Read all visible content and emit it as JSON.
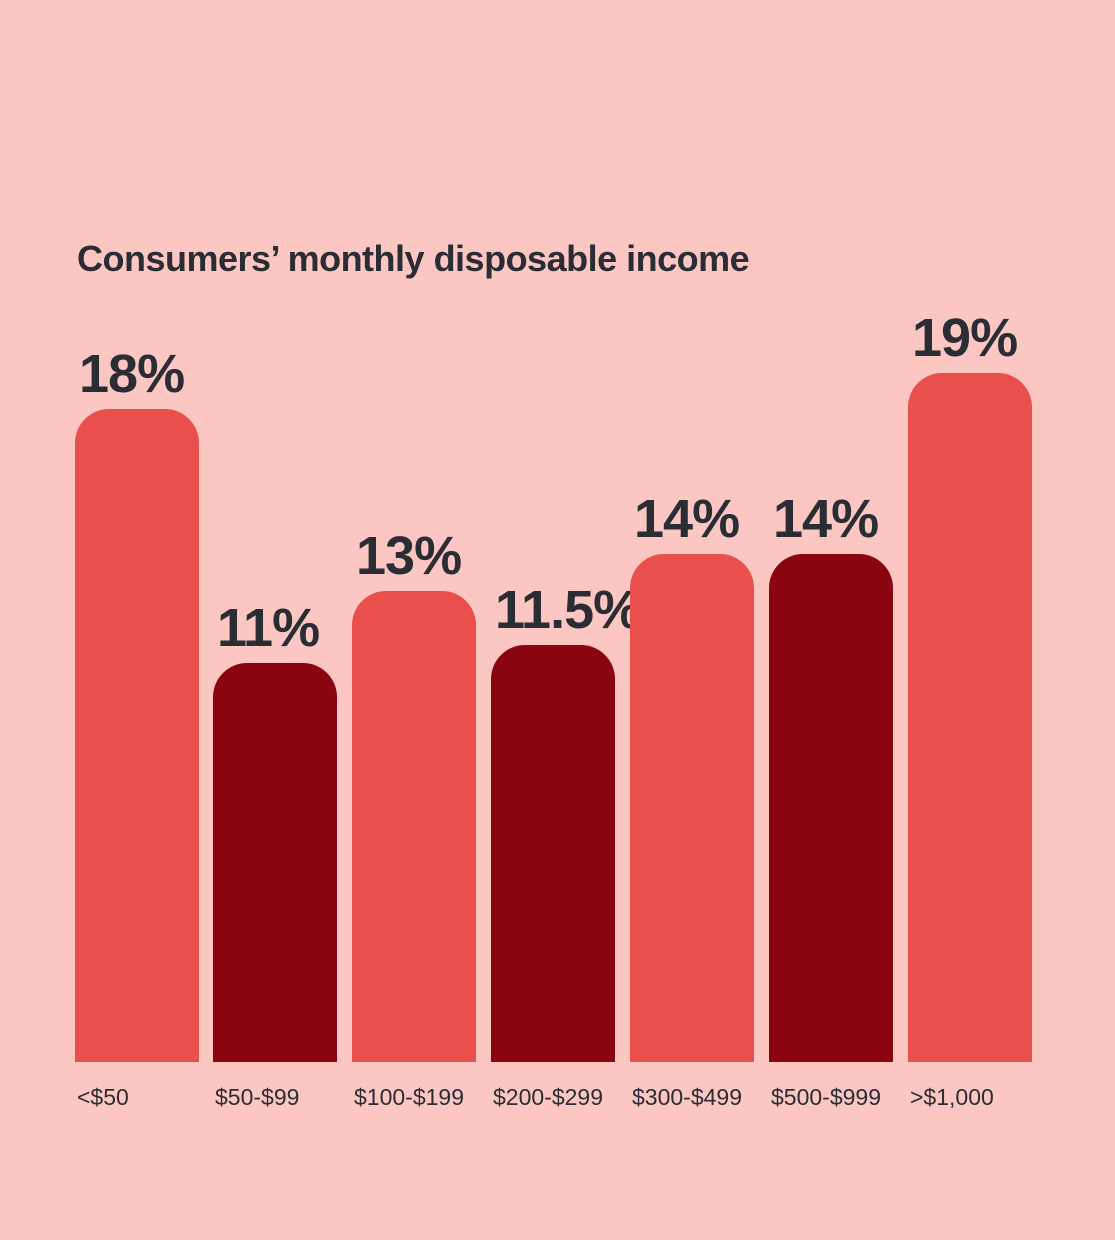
{
  "title": "Consumers’ monthly disposable income",
  "colors": {
    "background": "#fcc7c2",
    "bar_light": "#e9504b",
    "bar_dark": "#8b0510",
    "text": "#2a2d33"
  },
  "chart_data": {
    "type": "bar",
    "title": "Consumers’ monthly disposable income",
    "xlabel": "",
    "ylabel": "",
    "categories": [
      "<$50",
      "$50-$99",
      "$100-$199",
      "$200-$299",
      "$300-$499",
      "$500-$999",
      ">$1,000"
    ],
    "values": [
      18,
      11,
      13,
      11.5,
      14,
      14,
      19
    ],
    "labels": [
      "18%",
      "11%",
      "13%",
      "11.5%",
      "14%",
      "14%",
      "19%"
    ],
    "ylim": [
      0,
      19
    ],
    "grid": false,
    "legend": "none"
  }
}
